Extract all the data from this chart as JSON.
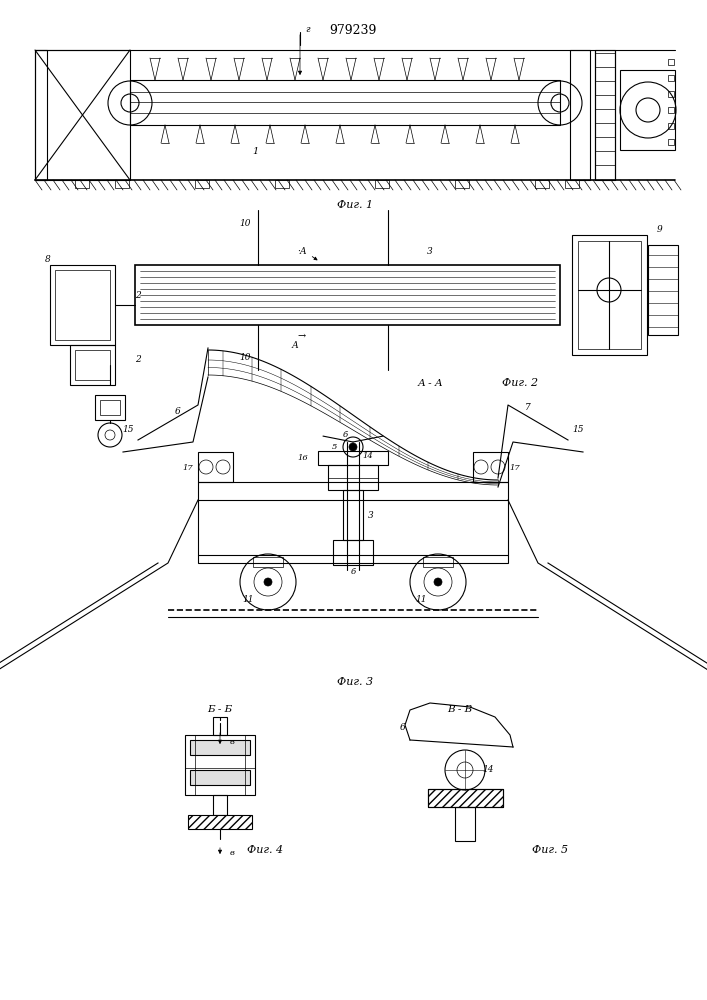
{
  "title": "979239",
  "bg_color": "#ffffff",
  "fig1_label": "Фиг. 1",
  "fig2_label": "Фиг. 2",
  "fig3_label": "Фиг. 3",
  "fig4_label": "Фиг. 4",
  "fig5_label": "Фиг. 5",
  "aa_label": "А - А",
  "bb_label": "Б - Б",
  "vv_label": "В - В"
}
